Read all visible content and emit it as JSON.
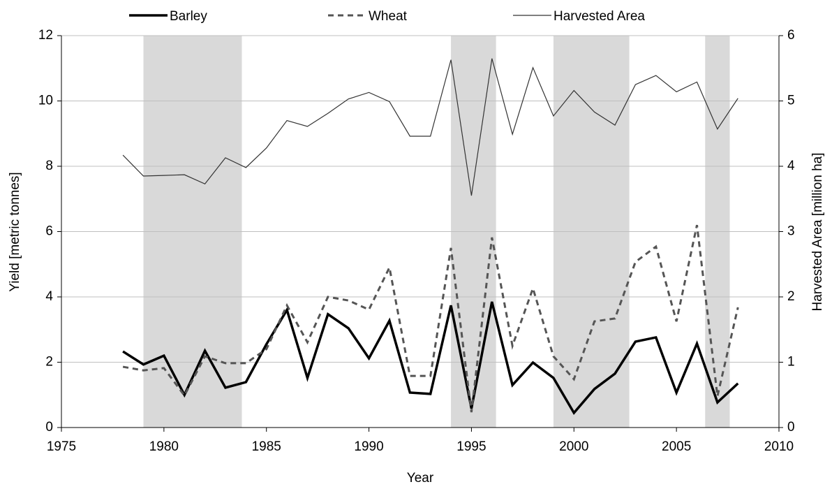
{
  "chart_data": {
    "type": "line",
    "x_label": "Year",
    "y_label": "Yield [metric tonnes]",
    "y2_label": "Harvested Area [million ha]",
    "x": [
      1978,
      1979,
      1980,
      1981,
      1982,
      1983,
      1984,
      1985,
      1986,
      1987,
      1988,
      1989,
      1990,
      1991,
      1992,
      1993,
      1994,
      1995,
      1996,
      1997,
      1998,
      1999,
      2000,
      2001,
      2002,
      2003,
      2004,
      2005,
      2006,
      2007,
      2008
    ],
    "series": [
      {
        "name": "Barley",
        "color": "#000000",
        "linestyle": "thick",
        "values": [
          2.33,
          1.93,
          2.2,
          1.0,
          2.35,
          1.22,
          1.39,
          2.55,
          3.6,
          1.52,
          3.47,
          3.04,
          2.12,
          3.27,
          1.07,
          1.03,
          3.74,
          0.58,
          3.85,
          1.3,
          1.99,
          1.52,
          0.45,
          1.18,
          1.65,
          2.63,
          2.76,
          1.07,
          2.57,
          0.77,
          1.35
        ]
      },
      {
        "name": "Wheat",
        "color": "#555555",
        "linestyle": "dashed",
        "values": [
          1.86,
          1.75,
          1.82,
          0.98,
          2.18,
          1.97,
          1.97,
          2.4,
          3.74,
          2.61,
          4.0,
          3.89,
          3.61,
          4.9,
          1.58,
          1.58,
          5.5,
          0.47,
          5.82,
          2.5,
          4.26,
          2.18,
          1.48,
          3.25,
          3.34,
          5.07,
          5.54,
          3.25,
          6.2,
          0.96,
          3.68
        ]
      },
      {
        "name": "Harvested Area",
        "color": "#333333",
        "linestyle": "thin",
        "axis": "y2",
        "values": [
          4.17,
          3.85,
          3.86,
          3.87,
          3.73,
          4.13,
          3.98,
          4.28,
          4.7,
          4.61,
          4.81,
          5.03,
          5.13,
          4.99,
          4.46,
          4.46,
          5.63,
          3.55,
          5.65,
          4.49,
          5.51,
          4.77,
          5.16,
          4.83,
          4.63,
          5.25,
          5.39,
          5.14,
          5.29,
          4.57,
          5.04
        ]
      }
    ],
    "shaded_periods": [
      {
        "start": 1979,
        "end": 1983.8
      },
      {
        "start": 1994,
        "end": 1996.2
      },
      {
        "start": 1999,
        "end": 2002.7
      },
      {
        "start": 2006.4,
        "end": 2007.6
      }
    ],
    "shade_color": "#d9d9d9",
    "xlim": [
      1975,
      2010
    ],
    "xticks": [
      1975,
      1980,
      1985,
      1990,
      1995,
      2000,
      2005,
      2010
    ],
    "ylim": [
      0,
      12
    ],
    "yticks": [
      0,
      2,
      4,
      6,
      8,
      10,
      12
    ],
    "y2lim": [
      0,
      6
    ],
    "y2ticks": [
      0,
      1,
      2,
      3,
      4,
      5,
      6
    ],
    "grid": true,
    "legend": "top"
  }
}
